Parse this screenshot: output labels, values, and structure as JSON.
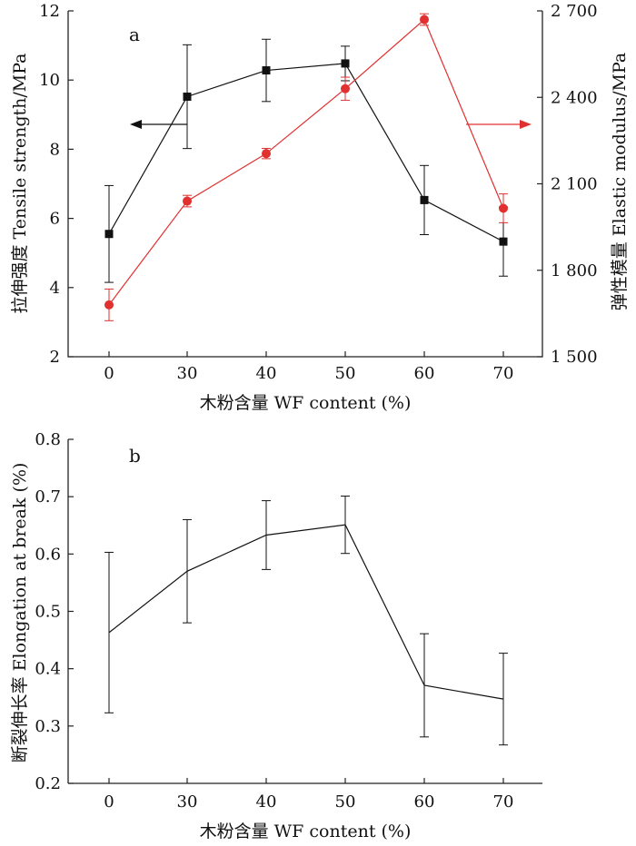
{
  "chart_data": [
    {
      "panel_label": "a",
      "type": "line",
      "xlabel": "木粉含量  WF content (%)",
      "ylabel_left": "拉伸强度  Tensile strength/MPa",
      "ylabel_right": "弹性模量  Elastic modulus/MPa",
      "categories": [
        "0",
        "30",
        "40",
        "50",
        "60",
        "70"
      ],
      "x": [
        0,
        30,
        40,
        50,
        60,
        70
      ],
      "ylim_left": [
        2,
        12
      ],
      "yticks_left": [
        2,
        4,
        6,
        8,
        10,
        12
      ],
      "ylim_right": [
        1500,
        2700
      ],
      "yticks_right": [
        1500,
        1800,
        2100,
        2400,
        2700
      ],
      "ytick_labels_right": [
        "1 500",
        "1 800",
        "2 100",
        "2 400",
        "2 700"
      ],
      "series": [
        {
          "name": "Tensile strength",
          "axis": "left",
          "marker": "square",
          "color": "#111111",
          "values": [
            5.55,
            9.52,
            10.28,
            10.48,
            6.53,
            5.33
          ],
          "errors": [
            1.4,
            1.5,
            0.9,
            0.5,
            1.0,
            1.0
          ]
        },
        {
          "name": "Elastic modulus",
          "axis": "right",
          "marker": "circle",
          "color": "#e03030",
          "values": [
            1680,
            2040,
            2205,
            2430,
            2670,
            2015
          ],
          "errors": [
            55,
            20,
            18,
            40,
            20,
            50
          ]
        }
      ]
    },
    {
      "panel_label": "b",
      "type": "line",
      "xlabel": "木粉含量  WF content (%)",
      "ylabel": "断裂伸长率  Elongation at break (%)",
      "categories": [
        "0",
        "30",
        "40",
        "50",
        "60",
        "70"
      ],
      "x": [
        0,
        30,
        40,
        50,
        60,
        70
      ],
      "ylim": [
        0.2,
        0.8
      ],
      "yticks": [
        0.2,
        0.3,
        0.4,
        0.5,
        0.6,
        0.7,
        0.8
      ],
      "series": [
        {
          "name": "Elongation at break",
          "color": "#111111",
          "values": [
            0.463,
            0.57,
            0.633,
            0.651,
            0.371,
            0.347
          ],
          "errors": [
            0.14,
            0.09,
            0.06,
            0.05,
            0.09,
            0.08
          ]
        }
      ]
    }
  ]
}
